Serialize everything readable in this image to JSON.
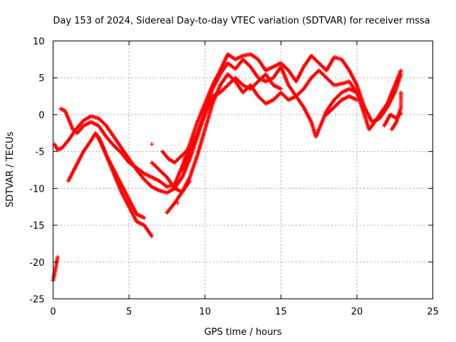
{
  "chart_data": {
    "type": "scatter",
    "title": "Day 153 of 2024, Sidereal Day-to-day VTEC variation (SDTVAR) for receiver mssa",
    "xlabel": "GPS time / hours",
    "ylabel": "SDTVAR / TECUs",
    "xlim": [
      0,
      25
    ],
    "ylim": [
      -25,
      10
    ],
    "grid": true,
    "x_ticks": [
      "0",
      "5",
      "10",
      "15",
      "20",
      "25"
    ],
    "y_ticks": [
      "10",
      "5",
      "0",
      "-5",
      "-10",
      "-15",
      "-20",
      "-25"
    ],
    "marker": "plus",
    "series": [
      {
        "name": "SDTVAR",
        "color": "#ff0000",
        "tracks": [
          [
            [
              0.0,
              -22.5
            ],
            [
              0.1,
              -21.5
            ],
            [
              0.2,
              -20.5
            ],
            [
              0.3,
              -19.3
            ]
          ],
          [
            [
              0.1,
              -4.0
            ],
            [
              0.3,
              -4.8
            ],
            [
              0.6,
              -4.5
            ],
            [
              1.0,
              -3.5
            ],
            [
              1.5,
              -2.0
            ],
            [
              2.0,
              -0.8
            ],
            [
              2.5,
              -0.2
            ],
            [
              3.0,
              -0.5
            ],
            [
              3.5,
              -1.5
            ],
            [
              4.0,
              -3.0
            ],
            [
              4.5,
              -4.5
            ],
            [
              5.0,
              -6.0
            ],
            [
              5.5,
              -7.5
            ],
            [
              6.0,
              -8.8
            ],
            [
              6.5,
              -9.8
            ],
            [
              7.0,
              -10.3
            ],
            [
              7.5,
              -10.6
            ],
            [
              8.0,
              -10.0
            ],
            [
              8.5,
              -8.5
            ],
            [
              9.0,
              -6.0
            ],
            [
              9.5,
              -3.0
            ],
            [
              10.0,
              0.5
            ],
            [
              10.5,
              3.5
            ],
            [
              11.0,
              5.5
            ],
            [
              11.5,
              7.0
            ],
            [
              12.0,
              6.2
            ],
            [
              12.5,
              7.5
            ],
            [
              13.0,
              6.5
            ],
            [
              13.5,
              5.0
            ],
            [
              14.0,
              4.5
            ],
            [
              14.5,
              5.0
            ],
            [
              15.0,
              6.5
            ],
            [
              15.5,
              4.0
            ],
            [
              16.0,
              2.5
            ],
            [
              16.5,
              3.5
            ],
            [
              17.0,
              5.0
            ],
            [
              17.5,
              6.0
            ],
            [
              18.0,
              5.0
            ],
            [
              18.5,
              4.0
            ],
            [
              19.0,
              4.2
            ],
            [
              19.5,
              4.5
            ],
            [
              20.0,
              3.0
            ],
            [
              20.5,
              0.0
            ],
            [
              20.8,
              -2.0
            ],
            [
              21.0,
              -1.5
            ],
            [
              21.5,
              0.0
            ],
            [
              22.0,
              1.5
            ],
            [
              22.5,
              4.0
            ],
            [
              22.9,
              6.0
            ]
          ],
          [
            [
              0.5,
              0.8
            ],
            [
              0.8,
              0.5
            ],
            [
              1.0,
              -0.5
            ],
            [
              1.3,
              -2.0
            ],
            [
              1.6,
              -2.5
            ],
            [
              2.0,
              -1.5
            ],
            [
              2.5,
              -1.0
            ],
            [
              3.0,
              -1.5
            ],
            [
              3.5,
              -3.0
            ],
            [
              4.0,
              -4.2
            ],
            [
              4.5,
              -5.2
            ],
            [
              5.0,
              -6.5
            ],
            [
              5.5,
              -7.2
            ],
            [
              6.0,
              -8.0
            ],
            [
              6.5,
              -8.5
            ],
            [
              7.0,
              -9.0
            ],
            [
              7.5,
              -9.8
            ],
            [
              8.0,
              -9.5
            ],
            [
              8.5,
              -7.0
            ],
            [
              9.0,
              -4.0
            ],
            [
              9.5,
              -1.0
            ],
            [
              10.0,
              1.5
            ],
            [
              10.5,
              4.0
            ],
            [
              11.0,
              6.0
            ],
            [
              11.5,
              8.2
            ],
            [
              12.0,
              7.5
            ],
            [
              12.5,
              8.0
            ],
            [
              13.0,
              8.2
            ],
            [
              13.5,
              7.5
            ],
            [
              14.0,
              6.0
            ],
            [
              14.5,
              6.5
            ],
            [
              15.0,
              7.0
            ],
            [
              15.5,
              6.0
            ],
            [
              16.0,
              4.5
            ],
            [
              16.5,
              6.5
            ],
            [
              17.0,
              8.0
            ],
            [
              17.5,
              7.0
            ],
            [
              18.0,
              6.0
            ],
            [
              18.5,
              7.8
            ],
            [
              19.0,
              7.5
            ],
            [
              19.5,
              6.0
            ],
            [
              20.0,
              4.0
            ],
            [
              20.5,
              1.0
            ],
            [
              21.0,
              -1.0
            ],
            [
              21.5,
              -0.5
            ],
            [
              22.0,
              1.0
            ],
            [
              22.5,
              3.0
            ],
            [
              22.9,
              5.5
            ]
          ],
          [
            [
              1.0,
              -9.0
            ],
            [
              1.5,
              -7.0
            ],
            [
              2.0,
              -5.0
            ],
            [
              2.5,
              -3.5
            ],
            [
              2.8,
              -2.5
            ],
            [
              3.2,
              -4.0
            ],
            [
              3.6,
              -6.0
            ],
            [
              4.0,
              -8.0
            ],
            [
              4.5,
              -10.5
            ],
            [
              5.0,
              -12.5
            ],
            [
              5.5,
              -14.5
            ],
            [
              6.0,
              -15.0
            ],
            [
              6.5,
              -16.5
            ]
          ],
          [
            [
              3.0,
              -3.0
            ],
            [
              3.5,
              -5.5
            ],
            [
              4.0,
              -7.5
            ],
            [
              4.5,
              -9.5
            ],
            [
              5.0,
              -11.5
            ],
            [
              5.5,
              -13.5
            ],
            [
              6.0,
              -14.0
            ]
          ],
          [
            [
              7.5,
              -13.3
            ],
            [
              8.0,
              -12.0
            ],
            [
              8.5,
              -10.5
            ],
            [
              9.0,
              -8.5
            ],
            [
              9.5,
              -5.5
            ],
            [
              10.0,
              -2.0
            ],
            [
              10.5,
              1.5
            ],
            [
              11.0,
              4.0
            ],
            [
              11.5,
              5.5
            ],
            [
              12.0,
              4.5
            ],
            [
              12.5,
              3.0
            ],
            [
              13.0,
              4.0
            ],
            [
              13.5,
              2.5
            ],
            [
              14.0,
              1.5
            ],
            [
              14.5,
              2.0
            ],
            [
              15.0,
              3.0
            ],
            [
              15.5,
              2.0
            ],
            [
              16.0,
              2.5
            ],
            [
              16.5,
              1.0
            ],
            [
              17.0,
              -1.0
            ],
            [
              17.3,
              -3.0
            ],
            [
              17.6,
              -1.5
            ],
            [
              18.0,
              0.5
            ],
            [
              18.5,
              2.0
            ],
            [
              19.0,
              3.0
            ],
            [
              19.5,
              3.5
            ],
            [
              20.0,
              3.0
            ]
          ],
          [
            [
              8.5,
              -7.5
            ],
            [
              9.0,
              -5.0
            ],
            [
              9.5,
              -2.5
            ],
            [
              10.0,
              0.0
            ],
            [
              10.5,
              2.5
            ],
            [
              11.0,
              3.0
            ],
            [
              11.5,
              4.0
            ],
            [
              12.0,
              5.0
            ],
            [
              12.5,
              4.0
            ],
            [
              13.0,
              3.5
            ],
            [
              13.5,
              4.5
            ],
            [
              14.0,
              5.5
            ],
            [
              14.5,
              4.0
            ],
            [
              15.0,
              3.5
            ]
          ],
          [
            [
              6.5,
              -6.5
            ],
            [
              7.0,
              -7.5
            ],
            [
              7.5,
              -8.5
            ],
            [
              8.0,
              -10.0
            ],
            [
              8.5,
              -10.5
            ],
            [
              9.0,
              -9.0
            ]
          ],
          [
            [
              7.2,
              -5.0
            ],
            [
              7.6,
              -6.0
            ],
            [
              8.0,
              -6.5
            ],
            [
              8.5,
              -5.5
            ],
            [
              9.0,
              -4.5
            ]
          ],
          [
            [
              18.0,
              0.0
            ],
            [
              18.5,
              1.0
            ],
            [
              19.0,
              2.0
            ],
            [
              19.5,
              2.5
            ],
            [
              20.0,
              2.0
            ]
          ],
          [
            [
              22.3,
              -2.0
            ],
            [
              22.6,
              -1.0
            ],
            [
              22.9,
              1.0
            ],
            [
              22.9,
              3.0
            ]
          ],
          [
            [
              21.8,
              -1.5
            ],
            [
              22.2,
              0.0
            ],
            [
              22.6,
              -0.5
            ],
            [
              22.9,
              0.2
            ]
          ]
        ],
        "isolated_points": [
          [
            6.5,
            -4.0
          ],
          [
            8.2,
            -12.0
          ]
        ]
      }
    ]
  }
}
